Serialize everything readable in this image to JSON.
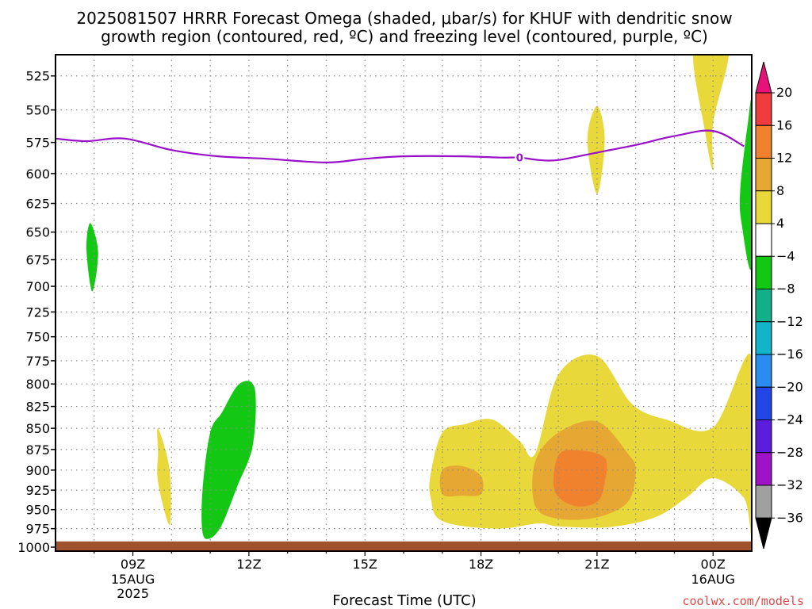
{
  "title_line1": "2025081507 HRRR Forecast Omega (shaded, μbar/s) for KHUF with dendritic snow",
  "title_line2": "growth region (contoured, red, ºC) and freezing level (contoured, purple, ºC)",
  "credit": "coolwx.com/models",
  "chart_data": {
    "type": "contour",
    "xlabel": "Forecast Time (UTC)",
    "ylabel": "",
    "y_scale": "log",
    "y_inverted": true,
    "xlim": [
      "2025-08-15 07Z",
      "2025-08-16 01Z"
    ],
    "ylim_hpa": [
      1000,
      510
    ],
    "grid": true,
    "y_ticks": [
      525,
      550,
      575,
      600,
      625,
      650,
      675,
      700,
      725,
      750,
      775,
      800,
      825,
      850,
      875,
      900,
      925,
      950,
      975,
      1000
    ],
    "x_ticks": [
      {
        "hour": 9,
        "label": "09Z",
        "sub1": "15AUG",
        "sub2": "2025"
      },
      {
        "hour": 12,
        "label": "12Z",
        "sub1": "",
        "sub2": ""
      },
      {
        "hour": 15,
        "label": "15Z",
        "sub1": "",
        "sub2": ""
      },
      {
        "hour": 18,
        "label": "18Z",
        "sub1": "",
        "sub2": ""
      },
      {
        "hour": 21,
        "label": "21Z",
        "sub1": "",
        "sub2": ""
      },
      {
        "hour": 24,
        "label": "00Z",
        "sub1": "16AUG",
        "sub2": ""
      }
    ],
    "colorbar": {
      "labels": [
        "20",
        "16",
        "12",
        "8",
        "4",
        "−4",
        "−8",
        "−12",
        "−16",
        "−20",
        "−24",
        "−28",
        "−32",
        "−36"
      ],
      "colors": [
        "#f03c3c",
        "#f0822d",
        "#e6a832",
        "#e8d83a",
        "#ffffff",
        "#12c812",
        "#11b088",
        "#11b4c8",
        "#2a8cf0",
        "#2346e6",
        "#5a1edc",
        "#a012c8",
        "#a0a0a0"
      ],
      "top_color": "#e6127a",
      "bottom_color": "#000000"
    },
    "freezing_level": {
      "label": "0",
      "color": "#9a10c8",
      "points": [
        [
          7.0,
          572
        ],
        [
          7.8,
          574
        ],
        [
          8.8,
          572
        ],
        [
          10.0,
          581
        ],
        [
          11.2,
          586
        ],
        [
          12.5,
          588
        ],
        [
          14.0,
          591
        ],
        [
          15.0,
          588
        ],
        [
          16.0,
          586
        ],
        [
          17.5,
          586
        ],
        [
          18.5,
          587
        ],
        [
          19.0,
          587
        ],
        [
          19.5,
          589
        ],
        [
          20.0,
          589
        ],
        [
          21.0,
          583
        ],
        [
          22.0,
          577
        ],
        [
          23.0,
          570
        ],
        [
          24.0,
          566
        ],
        [
          24.8,
          578
        ]
      ]
    },
    "omega_regions": [
      {
        "level": "+4",
        "color": "#e8d83a",
        "points": [
          [
            23.5,
            505
          ],
          [
            24.4,
            505
          ],
          [
            24.0,
            560
          ],
          [
            24.0,
            597
          ],
          [
            23.8,
            568
          ]
        ]
      },
      {
        "level": "+4",
        "color": "#e8d83a",
        "points": [
          [
            21.0,
            547
          ],
          [
            21.2,
            573
          ],
          [
            21.0,
            617
          ],
          [
            20.75,
            573
          ]
        ]
      },
      {
        "level": "+4",
        "color": "#e8d83a",
        "points": [
          [
            9.65,
            850
          ],
          [
            9.95,
            900
          ],
          [
            9.95,
            970
          ],
          [
            9.65,
            915
          ],
          [
            9.65,
            880
          ]
        ]
      },
      {
        "level": "+4",
        "color": "#e8d83a",
        "points": [
          [
            16.7,
            905
          ],
          [
            17.0,
            855
          ],
          [
            17.6,
            845
          ],
          [
            18.3,
            840
          ],
          [
            19.0,
            865
          ],
          [
            19.4,
            880
          ],
          [
            20.0,
            790
          ],
          [
            21.0,
            770
          ],
          [
            21.9,
            822
          ],
          [
            22.8,
            840
          ],
          [
            24.0,
            849
          ],
          [
            25.0,
            770
          ],
          [
            25.0,
            975
          ],
          [
            24.8,
            935
          ],
          [
            24.0,
            910
          ],
          [
            23.3,
            935
          ],
          [
            22.5,
            960
          ],
          [
            21.3,
            973
          ],
          [
            20.0,
            972
          ],
          [
            19.5,
            968
          ],
          [
            18.4,
            975
          ],
          [
            17.0,
            965
          ],
          [
            16.7,
            935
          ]
        ]
      },
      {
        "level": "+8",
        "color": "#e6a832",
        "points": [
          [
            17.0,
            900
          ],
          [
            17.5,
            895
          ],
          [
            18.0,
            907
          ],
          [
            18.0,
            930
          ],
          [
            17.5,
            932
          ],
          [
            17.0,
            930
          ]
        ]
      },
      {
        "level": "+8",
        "color": "#e6a832",
        "points": [
          [
            19.4,
            890
          ],
          [
            20.0,
            855
          ],
          [
            21.0,
            842
          ],
          [
            21.8,
            880
          ],
          [
            22.0,
            900
          ],
          [
            21.8,
            940
          ],
          [
            21.0,
            960
          ],
          [
            20.0,
            962
          ],
          [
            19.4,
            945
          ]
        ]
      },
      {
        "level": "+12",
        "color": "#f0822d",
        "points": [
          [
            20.0,
            882
          ],
          [
            20.5,
            876
          ],
          [
            21.2,
            885
          ],
          [
            21.2,
            915
          ],
          [
            21.0,
            940
          ],
          [
            20.4,
            945
          ],
          [
            19.9,
            925
          ]
        ]
      },
      {
        "level": "-4",
        "color": "#12c812",
        "points": [
          [
            7.9,
            642
          ],
          [
            8.1,
            668
          ],
          [
            7.95,
            705
          ],
          [
            7.8,
            665
          ]
        ]
      },
      {
        "level": "-4",
        "color": "#12c812",
        "points": [
          [
            11.0,
            855
          ],
          [
            11.3,
            832
          ],
          [
            11.75,
            800
          ],
          [
            12.15,
            805
          ],
          [
            12.1,
            870
          ],
          [
            11.7,
            920
          ],
          [
            11.3,
            970
          ],
          [
            11.0,
            988
          ],
          [
            10.8,
            980
          ],
          [
            10.8,
            925
          ]
        ]
      },
      {
        "level": "-4",
        "color": "#12c812",
        "points": [
          [
            24.7,
            615
          ],
          [
            24.9,
            560
          ],
          [
            25.0,
            550
          ],
          [
            25.0,
            680
          ],
          [
            24.75,
            645
          ]
        ]
      }
    ],
    "ground": {
      "color": "#a0522d",
      "from_hpa": 990,
      "to_hpa": 1000
    }
  }
}
